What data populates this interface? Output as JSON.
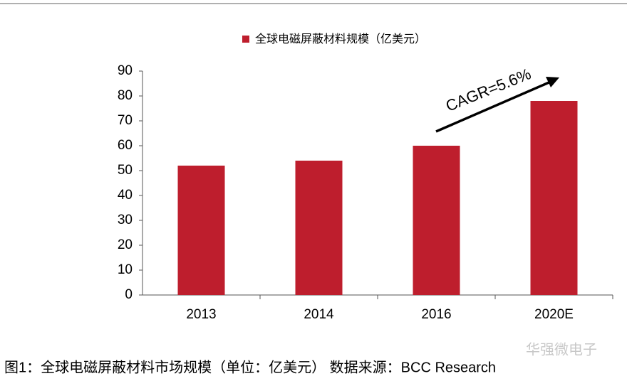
{
  "chart_data": {
    "type": "bar",
    "legend_label": "全球电磁屏蔽材料规模（亿美元）",
    "categories": [
      "2013",
      "2014",
      "2016",
      "2020E"
    ],
    "values": [
      52,
      54,
      60,
      78
    ],
    "color": "#be1e2d",
    "ylim": [
      0,
      90
    ],
    "yticks": [
      0,
      10,
      20,
      30,
      40,
      50,
      60,
      70,
      80,
      90
    ],
    "annotation": "CAGR=5.6%",
    "caption": "图1：全球电磁屏蔽材料市场规模（单位：亿美元） 数据来源：BCC Research",
    "watermark": "华强微电子"
  }
}
